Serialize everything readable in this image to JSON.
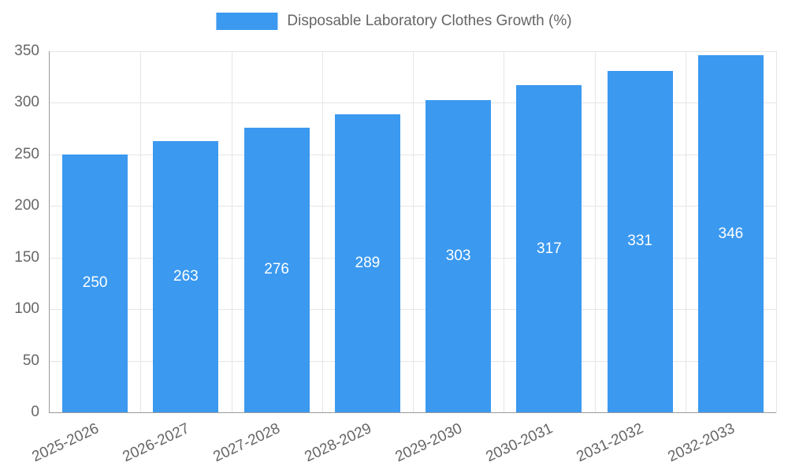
{
  "chart_data": {
    "type": "bar",
    "title": "Disposable Laboratory Clothes Growth (%)",
    "categories": [
      "2025-2026",
      "2026-2027",
      "2027-2028",
      "2028-2029",
      "2029-2030",
      "2030-2031",
      "2031-2032",
      "2032-2033"
    ],
    "values": [
      250,
      263,
      276,
      289,
      303,
      317,
      331,
      346
    ],
    "xlabel": "",
    "ylabel": "",
    "ylim": [
      0,
      350
    ],
    "yticks": [
      0,
      50,
      100,
      150,
      200,
      250,
      300,
      350
    ],
    "grid": true,
    "legend_position": "top",
    "bar_color": "#3b99f0",
    "value_label_color": "#ffffff"
  },
  "colors": {
    "grid": "#e6e6e6",
    "axis": "#9a9a9a",
    "tick_text": "#666666",
    "background": "#ffffff"
  }
}
